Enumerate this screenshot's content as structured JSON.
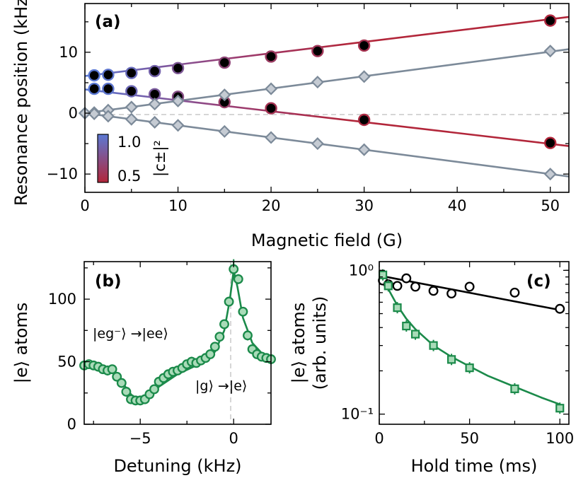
{
  "chart_data": [
    {
      "panel": "(a)",
      "type": "scatter",
      "xlabel": "Magnetic field (G)",
      "ylabel": "Resonance position (kHz)",
      "xlim": [
        0,
        52
      ],
      "ylim": [
        -13,
        18
      ],
      "xticks": [
        "0",
        "10",
        "20",
        "30",
        "40",
        "50"
      ],
      "yticks": [
        "−10",
        "0",
        "10"
      ],
      "colorbar": {
        "label": "|c±|²",
        "ticks": [
          "1.0",
          "0.5"
        ],
        "top_color": "#5b79d4",
        "bottom_color": "#b2263a"
      },
      "line_color": "#b2263a",
      "diamond_color": "#7c8a99",
      "series": [
        {
          "name": "upper circles",
          "marker": "circle",
          "x": [
            1,
            2.5,
            5,
            7.5,
            10,
            15,
            20,
            25,
            30,
            50
          ],
          "y": [
            6.2,
            6.3,
            6.6,
            6.9,
            7.4,
            8.3,
            9.3,
            10.2,
            11.1,
            15.2
          ],
          "c": [
            1.0,
            0.98,
            0.92,
            0.86,
            0.8,
            0.7,
            0.63,
            0.6,
            0.57,
            0.52
          ]
        },
        {
          "name": "lower circles",
          "marker": "circle",
          "x": [
            1,
            2.5,
            5,
            7.5,
            10,
            15,
            20,
            25,
            30,
            50
          ],
          "y": [
            4.0,
            4.0,
            3.6,
            3.1,
            2.7,
            1.8,
            0.8,
            null,
            -1.1,
            -4.9
          ],
          "c": [
            1.0,
            0.98,
            0.9,
            0.82,
            0.75,
            0.65,
            0.58,
            null,
            0.53,
            0.5
          ]
        },
        {
          "name": "upper diamonds",
          "marker": "diamond",
          "x": [
            0,
            1,
            2.5,
            5,
            7.5,
            10,
            15,
            20,
            25,
            30,
            50
          ],
          "y": [
            0,
            0.1,
            0.5,
            1.0,
            1.5,
            2.0,
            3.0,
            4.0,
            5.1,
            6.0,
            10.2
          ]
        },
        {
          "name": "lower diamonds",
          "marker": "diamond",
          "x": [
            0,
            1,
            2.5,
            5,
            7.5,
            10,
            15,
            20,
            25,
            30,
            50
          ],
          "y": [
            0,
            -0.1,
            -0.5,
            -1.0,
            -1.5,
            -2.0,
            -3.0,
            -4.0,
            -5.0,
            -6.0,
            -10.0
          ]
        }
      ]
    },
    {
      "panel": "(b)",
      "type": "scatter",
      "xlabel": "Detuning (kHz)",
      "ylabel": "|e⟩ atoms",
      "xlim": [
        -8,
        2
      ],
      "ylim": [
        0,
        130
      ],
      "xticks": [
        "−5",
        "0"
      ],
      "yticks": [
        "0",
        "50",
        "100"
      ],
      "annotations": [
        "|eg⁻⟩ →|ee⟩",
        "|g⟩ →|e⟩"
      ],
      "color": "#1b8a4a",
      "x": [
        -8.0,
        -7.75,
        -7.5,
        -7.25,
        -7.0,
        -6.75,
        -6.5,
        -6.25,
        -6.0,
        -5.75,
        -5.5,
        -5.25,
        -5.0,
        -4.75,
        -4.5,
        -4.25,
        -4.0,
        -3.75,
        -3.5,
        -3.25,
        -3.0,
        -2.75,
        -2.5,
        -2.25,
        -2.0,
        -1.75,
        -1.5,
        -1.25,
        -1.0,
        -0.75,
        -0.5,
        -0.25,
        0.0,
        0.25,
        0.5,
        0.75,
        1.0,
        1.25,
        1.5,
        1.75,
        2.0
      ],
      "y": [
        47,
        48,
        47,
        46,
        44,
        43,
        44,
        38,
        33,
        26,
        20,
        19,
        19,
        20,
        24,
        28,
        34,
        37,
        40,
        42,
        43,
        45,
        48,
        50,
        49,
        51,
        53,
        56,
        62,
        70,
        80,
        98,
        124,
        116,
        90,
        71,
        60,
        56,
        54,
        53,
        52
      ],
      "fit_x": [
        -8,
        -7,
        -6.5,
        -6,
        -5.5,
        -5.1,
        -4.5,
        -4,
        -3,
        -2,
        -1,
        -0.5,
        -0.2,
        0,
        0.2,
        0.5,
        1,
        1.5,
        2
      ],
      "fit_y": [
        48,
        45,
        42,
        34,
        24,
        18,
        21,
        30,
        40,
        47,
        58,
        75,
        100,
        123,
        110,
        85,
        65,
        57,
        53
      ]
    },
    {
      "panel": "(c)",
      "type": "scatter",
      "xlabel": "Hold time (ms)",
      "ylabel": "|e⟩ atoms (arb. units)",
      "yscale": "log",
      "xlim": [
        0,
        105
      ],
      "ylim": [
        0.085,
        1.15
      ],
      "xticks": [
        "0",
        "50",
        "100"
      ],
      "yticks": [
        "10⁰",
        "10⁻¹"
      ],
      "series": [
        {
          "name": "black circles",
          "color": "#000000",
          "marker": "circle",
          "x": [
            2,
            5,
            10,
            15,
            20,
            30,
            40,
            50,
            75,
            100
          ],
          "y": [
            0.85,
            0.8,
            0.78,
            0.88,
            0.77,
            0.72,
            0.69,
            0.77,
            0.7,
            0.54
          ],
          "fit_x": [
            0,
            100
          ],
          "fit_y": [
            0.92,
            0.53
          ]
        },
        {
          "name": "green squares",
          "color": "#1b8a4a",
          "marker": "square",
          "x": [
            2,
            5,
            10,
            15,
            20,
            30,
            40,
            50,
            75,
            100
          ],
          "y": [
            0.93,
            0.78,
            0.55,
            0.41,
            0.36,
            0.3,
            0.24,
            0.21,
            0.15,
            0.11
          ],
          "fit_x": [
            0,
            5,
            10,
            15,
            20,
            30,
            40,
            50,
            60,
            75,
            90,
            100
          ],
          "fit_y": [
            0.97,
            0.74,
            0.57,
            0.46,
            0.39,
            0.3,
            0.25,
            0.215,
            0.185,
            0.155,
            0.13,
            0.117
          ]
        }
      ]
    }
  ]
}
